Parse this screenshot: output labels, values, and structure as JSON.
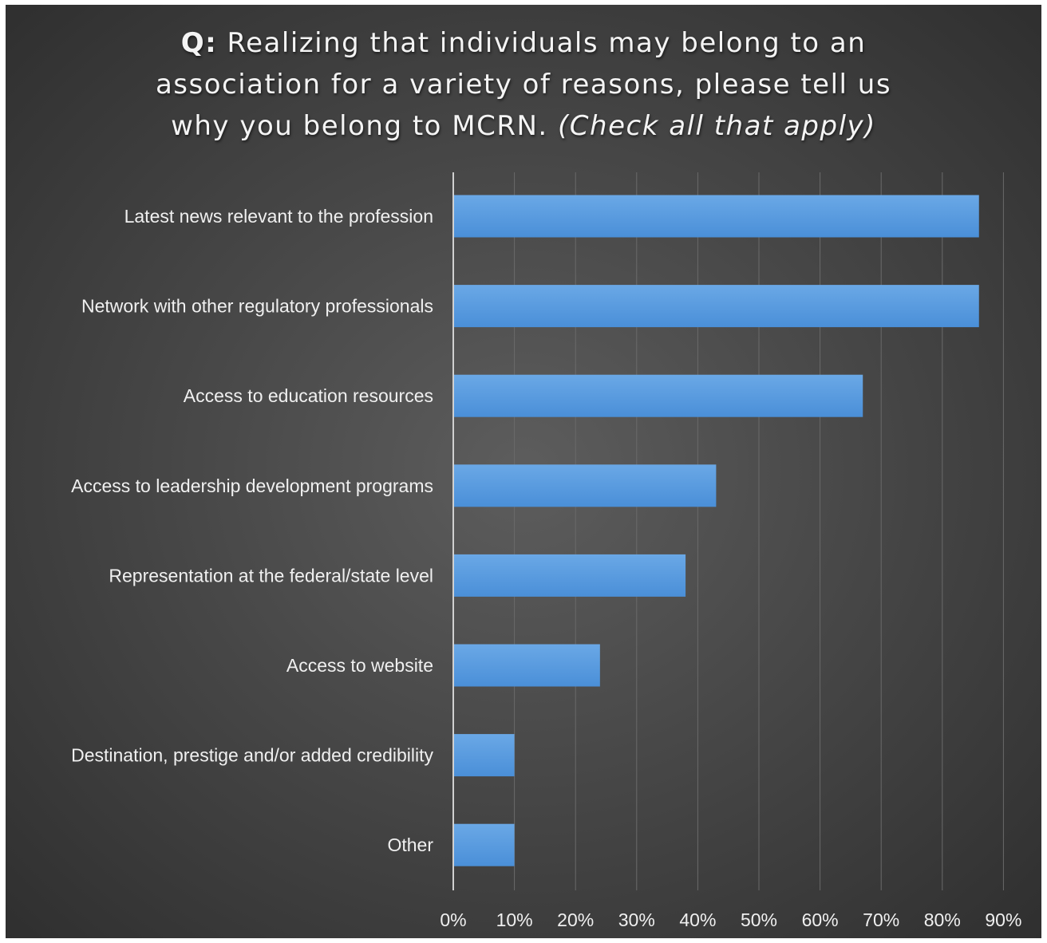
{
  "title": {
    "prefix": "Q:",
    "line1_rest": "Realizing that individuals may belong to an",
    "line2": "association for a variety of reasons, please tell us",
    "line3_main": "why you belong to MCRN.",
    "line3_italic": "(Check all that apply)"
  },
  "colors": {
    "bar": "#4a8fd8",
    "bar_light": "#6aa8e6",
    "axis": "#d0d0d0",
    "grid": "#6a6a6a"
  },
  "chart_data": {
    "type": "bar",
    "orientation": "horizontal",
    "categories": [
      "Latest news relevant to the profession",
      "Network with other regulatory professionals",
      "Access to education resources",
      "Access to leadership development programs",
      "Representation at the federal/state level",
      "Access to website",
      "Destination, prestige and/or added credibility",
      "Other"
    ],
    "values": [
      86,
      86,
      67,
      43,
      38,
      24,
      10,
      10
    ],
    "xlim": [
      0,
      90
    ],
    "xticks": [
      "0%",
      "10%",
      "20%",
      "30%",
      "40%",
      "50%",
      "60%",
      "70%",
      "80%",
      "90%"
    ],
    "grid": true,
    "legend": "none"
  }
}
